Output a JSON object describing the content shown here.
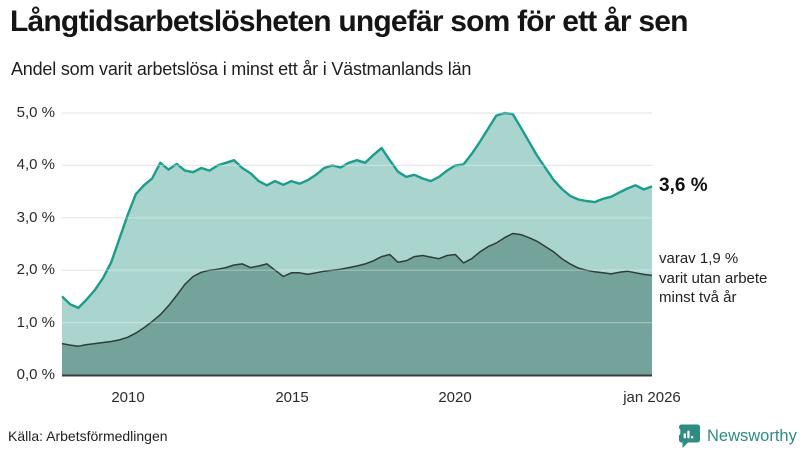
{
  "header": {
    "title": "Långtidsarbetslösheten ungefär som för ett år sen",
    "subtitle": "Andel som varit arbetslösa i minst ett år i Västmanlands län"
  },
  "chart_data": {
    "type": "area",
    "title": "Långtidsarbetslösheten ungefär som för ett år sen",
    "region": "Västmanlands län",
    "x_start": 2008.0,
    "x_step": 0.25,
    "xlim": [
      2008.0,
      2026.0
    ],
    "ylim": [
      0,
      5
    ],
    "grid": true,
    "y_ticks": [
      {
        "v": 5,
        "label": "5,0 %"
      },
      {
        "v": 4,
        "label": "4,0 %"
      },
      {
        "v": 3,
        "label": "3,0 %"
      },
      {
        "v": 2,
        "label": "2,0 %"
      },
      {
        "v": 1,
        "label": "1,0 %"
      },
      {
        "v": 0,
        "label": "0,0 %"
      }
    ],
    "x_ticks": [
      {
        "x": 2010,
        "label": "2010"
      },
      {
        "x": 2015,
        "label": "2015"
      },
      {
        "x": 2020,
        "label": "2020"
      },
      {
        "x": 2026,
        "label": "jan 2026"
      }
    ],
    "series": [
      {
        "name": "Arbetslösa minst ett år",
        "line_color": "#1b9c8d",
        "fill_color": "#a9d5ce",
        "line_width": 2.4,
        "end_value": "3,6 %",
        "values": [
          1.5,
          1.35,
          1.28,
          1.44,
          1.62,
          1.85,
          2.15,
          2.6,
          3.05,
          3.45,
          3.62,
          3.75,
          4.05,
          3.92,
          4.03,
          3.9,
          3.87,
          3.95,
          3.9,
          4.0,
          4.05,
          4.1,
          3.95,
          3.85,
          3.7,
          3.62,
          3.7,
          3.63,
          3.7,
          3.65,
          3.72,
          3.82,
          3.95,
          4.0,
          3.96,
          4.05,
          4.1,
          4.05,
          4.2,
          4.33,
          4.1,
          3.88,
          3.78,
          3.82,
          3.75,
          3.7,
          3.78,
          3.9,
          4.0,
          4.02,
          4.22,
          4.45,
          4.7,
          4.95,
          5.0,
          4.98,
          4.72,
          4.45,
          4.18,
          3.95,
          3.72,
          3.55,
          3.42,
          3.35,
          3.32,
          3.3,
          3.36,
          3.4,
          3.48,
          3.56,
          3.62,
          3.54,
          3.6
        ]
      },
      {
        "name": "varav varit utan arbete minst två år",
        "line_color": "#2e3d3a",
        "fill_color": "#74a39c",
        "line_width": 1.5,
        "end_value": "1,9 %",
        "values": [
          0.6,
          0.57,
          0.55,
          0.58,
          0.6,
          0.62,
          0.64,
          0.67,
          0.72,
          0.8,
          0.9,
          1.02,
          1.15,
          1.32,
          1.52,
          1.73,
          1.88,
          1.96,
          2.0,
          2.02,
          2.05,
          2.1,
          2.12,
          2.05,
          2.08,
          2.12,
          2.0,
          1.88,
          1.95,
          1.95,
          1.92,
          1.95,
          1.98,
          2.0,
          2.02,
          2.05,
          2.08,
          2.12,
          2.18,
          2.26,
          2.3,
          2.15,
          2.18,
          2.26,
          2.28,
          2.25,
          2.22,
          2.28,
          2.3,
          2.14,
          2.22,
          2.35,
          2.45,
          2.52,
          2.62,
          2.7,
          2.68,
          2.62,
          2.55,
          2.45,
          2.35,
          2.22,
          2.12,
          2.04,
          2.0,
          1.97,
          1.95,
          1.93,
          1.96,
          1.98,
          1.95,
          1.92,
          1.9
        ]
      }
    ],
    "annotations": {
      "total_label": "3,6 %",
      "note_lines": [
        "varav 1,9 %",
        "varit utan arbete",
        "minst två år"
      ]
    },
    "colors": {
      "grid": "#dcdee3",
      "axis": "#3b3b3b",
      "accent_teal": "#1b9c8d"
    }
  },
  "footer": {
    "source": "Källa: Arbetsförmedlingen",
    "brand": "Newsworthy",
    "brand_color": "#2e8c83"
  }
}
